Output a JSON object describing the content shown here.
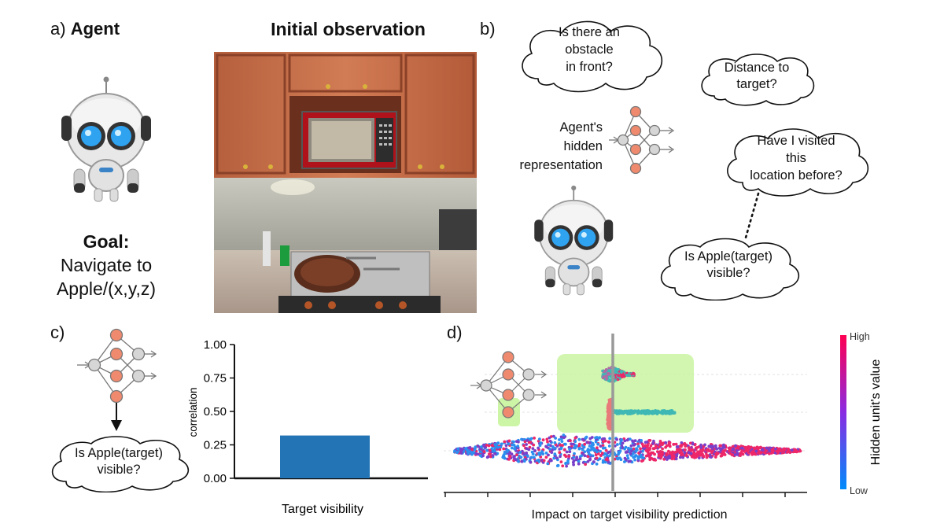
{
  "panel_a": {
    "letter": "a)",
    "title": "Agent",
    "goal_label": "Goal:",
    "goal_line1": "Navigate to",
    "goal_line2": "Apple/(x,y,z)",
    "observation_title": "Initial observation"
  },
  "panel_b": {
    "letter": "b)",
    "bubble_obstacle": [
      "Is there an",
      "obstacle",
      "in front?"
    ],
    "bubble_distance": [
      "Distance to",
      "target?"
    ],
    "bubble_visited": [
      "Have I visited",
      "this",
      "location before?"
    ],
    "bubble_apple": [
      "Is Apple(target)",
      "visible?"
    ],
    "hidden_rep": [
      "Agent's",
      "hidden",
      "representation"
    ]
  },
  "panel_c": {
    "letter": "c)",
    "bubble_apple": [
      "Is Apple(target)",
      "visible?"
    ]
  },
  "panel_d": {
    "letter": "d)",
    "xlabel": "Impact on target visibility prediction",
    "colorbar_title": "Hidden unit's value",
    "colorbar_high": "High",
    "colorbar_low": "Low"
  },
  "chart_data": {
    "type": "bar",
    "categories": [
      "Target visibility"
    ],
    "values": [
      0.32
    ],
    "title": "",
    "xlabel": "Target visibility",
    "ylabel": "correlation",
    "ylim": [
      0,
      1
    ],
    "yticks": [
      "0.00",
      "0.25",
      "0.50",
      "0.75",
      "1.00"
    ],
    "bar_color": "#2274b5"
  },
  "colors": {
    "node_fill": "#f08a6e",
    "node_grey": "#d4d4d4",
    "highlight": "#cdf5a6",
    "teal": "#3fb8b5",
    "pink": "#ee2768",
    "blue": "#2b8ff0",
    "purple": "#7a3fc8"
  }
}
